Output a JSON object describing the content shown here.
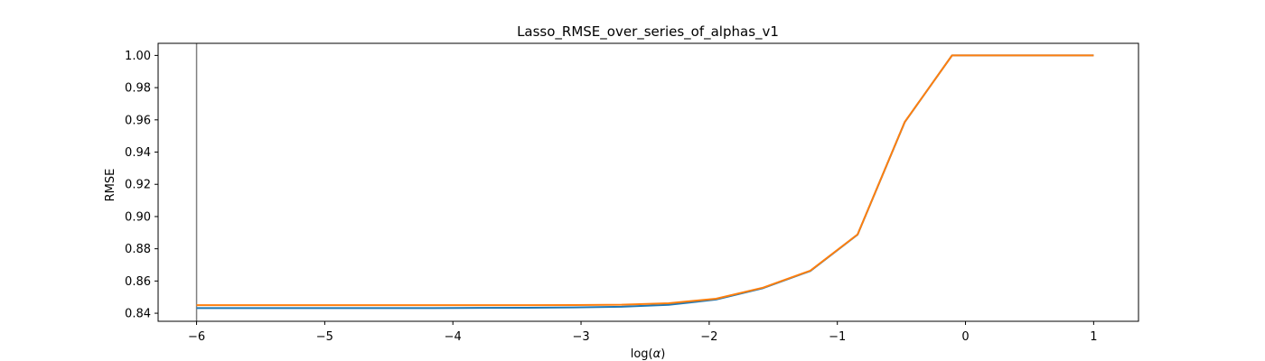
{
  "chart_data": {
    "type": "line",
    "title": "Lasso_RMSE_over_series_of_alphas_v1",
    "xlabel_text": "log(",
    "xlabel_symbol": "α",
    "xlabel_close": ")",
    "ylabel": "RMSE",
    "xlim": [
      -6.3,
      1.35
    ],
    "ylim": [
      0.835,
      1.0075
    ],
    "xticks": [
      -6,
      -5,
      -4,
      -3,
      -2,
      -1,
      0,
      1
    ],
    "xtick_labels": [
      "−6",
      "−5",
      "−4",
      "−3",
      "−2",
      "−1",
      "0",
      "1"
    ],
    "yticks": [
      0.84,
      0.86,
      0.88,
      0.9,
      0.92,
      0.94,
      0.96,
      0.98,
      1.0
    ],
    "ytick_labels": [
      "0.84",
      "0.86",
      "0.88",
      "0.90",
      "0.92",
      "0.94",
      "0.96",
      "0.98",
      "1.00"
    ],
    "grid": false,
    "vline_x": -6,
    "vline_color": "#808080",
    "x": [
      -6.0,
      -5.632,
      -5.263,
      -4.895,
      -4.526,
      -4.158,
      -3.789,
      -3.421,
      -3.053,
      -2.684,
      -2.316,
      -1.947,
      -1.579,
      -1.211,
      -0.842,
      -0.474,
      -0.105,
      0.263,
      0.632,
      1.0
    ],
    "series": [
      {
        "color": "#1f77b4",
        "values": [
          0.8432,
          0.8432,
          0.8432,
          0.8432,
          0.8432,
          0.8432,
          0.8433,
          0.8434,
          0.8436,
          0.844,
          0.8452,
          0.8485,
          0.8556,
          0.8662,
          0.8888,
          0.9586,
          1.0,
          1.0,
          1.0,
          1.0
        ]
      },
      {
        "color": "#ff7f0e",
        "values": [
          0.845,
          0.845,
          0.845,
          0.845,
          0.845,
          0.845,
          0.845,
          0.845,
          0.8451,
          0.8453,
          0.8462,
          0.849,
          0.8559,
          0.8664,
          0.8889,
          0.9587,
          1.0,
          1.0,
          1.0,
          1.0
        ]
      }
    ]
  }
}
